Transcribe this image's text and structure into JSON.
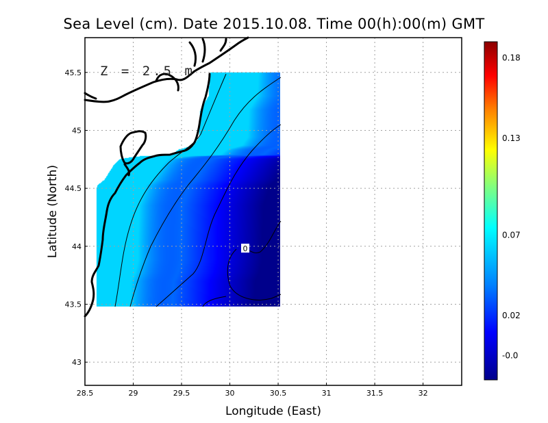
{
  "title": "Sea Level (cm). Date 2015.10.08. Time 00(h):00(m) GMT",
  "annotation": "Z = 2.5 m",
  "colormap": [
    "#00008b",
    "#0000ff",
    "#0080ff",
    "#00ffff",
    "#80ff80",
    "#ffff00",
    "#ff8000",
    "#ff0000",
    "#8b0000"
  ],
  "colors": {
    "coastline": "#000000",
    "grid": "#a0a0a0",
    "contour": "#000000"
  },
  "chart_data": {
    "type": "heatmap",
    "title": "Sea Level (cm). Date 2015.10.08. Time 00(h):00(m) GMT",
    "xlabel": "Longitude (East)",
    "ylabel": "Latitude (North)",
    "xlim": [
      28.5,
      32.4
    ],
    "ylim": [
      42.8,
      45.8
    ],
    "xticks": [
      "28.5",
      "29",
      "29.5",
      "30",
      "30.5",
      "31",
      "31.5",
      "32"
    ],
    "yticks": [
      "43",
      "43.5",
      "44",
      "44.5",
      "45",
      "45.5"
    ],
    "grid": true,
    "domain_extent": {
      "lon": [
        28.62,
        30.52
      ],
      "lat": [
        43.48,
        45.5
      ]
    },
    "colorbar": {
      "min": -0.02,
      "max": 0.19,
      "ticks": [
        "-0.0",
        "0.02",
        "0.07",
        "0.13",
        "0.18"
      ]
    },
    "contour_labels": [
      {
        "text": "0",
        "lon": 30.14,
        "lat": 43.99
      }
    ],
    "annotations": [
      "Z = 2.5 m"
    ]
  }
}
